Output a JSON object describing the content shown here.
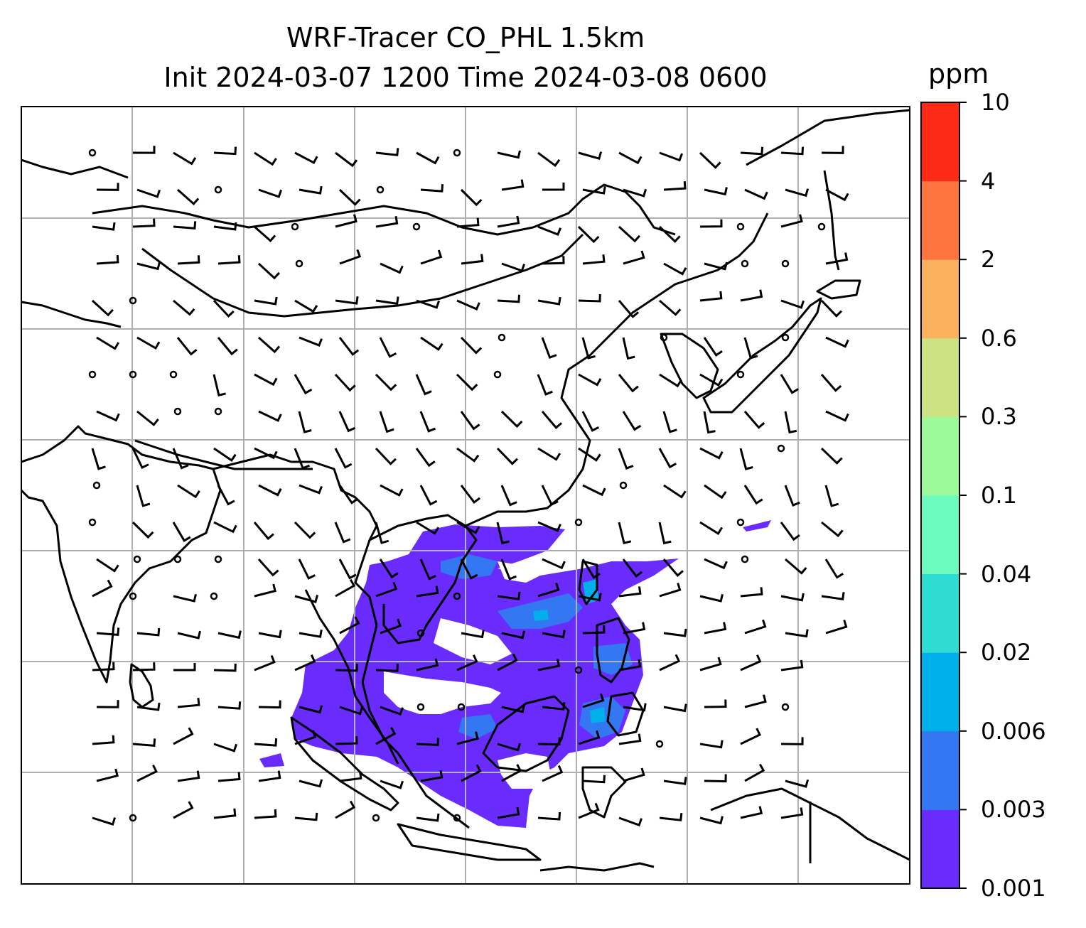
{
  "title": {
    "line1": "WRF-Tracer CO_PHL 1.5km",
    "line2": "Init 2024-03-07 1200 Time 2024-03-08 0600"
  },
  "colorbar": {
    "unit": "ppm",
    "levels": [
      "0.001",
      "0.003",
      "0.006",
      "0.02",
      "0.04",
      "0.1",
      "0.3",
      "0.6",
      "2",
      "4",
      "10"
    ],
    "colors": [
      "#6a2cfd",
      "#3477f3",
      "#00b0ea",
      "#2fdcd4",
      "#6cfbbf",
      "#9cfa9b",
      "#cde383",
      "#fbb15e",
      "#ff7540",
      "#ff2a16"
    ]
  },
  "map": {
    "grid": "on",
    "features": [
      "coastlines",
      "country borders",
      "wind barbs",
      "tracer concentration shading"
    ],
    "colors": {
      "coastline": "#000000",
      "grid": "#b0b0b0",
      "tracer_low": "#6a2cfd",
      "tracer_mid": "#3477f3"
    }
  }
}
